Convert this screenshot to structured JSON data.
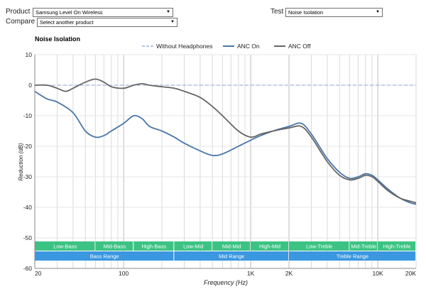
{
  "controls": {
    "product_label": "Product",
    "product_value": "Samsung Level On Wireless",
    "compare_label": "Compare",
    "compare_value": "Select another product",
    "test_label": "Test",
    "test_value": "Noise Isolation",
    "dropdown_icon": "triangle-down-icon"
  },
  "chart_data": {
    "type": "line",
    "title": "Noise Isolation",
    "xlabel": "Frequency (Hz)",
    "ylabel": "Reduction (dB)",
    "xscale": "log",
    "xlim": [
      20,
      20000
    ],
    "ylim": [
      -60,
      10
    ],
    "grid": true,
    "legend": "top-center",
    "x_ticks": [
      {
        "v": 20,
        "label": "20"
      },
      {
        "v": 100,
        "label": "100"
      },
      {
        "v": 1000,
        "label": "1K"
      },
      {
        "v": 2000,
        "label": "2K"
      },
      {
        "v": 10000,
        "label": "10K"
      },
      {
        "v": 20000,
        "label": "20K"
      }
    ],
    "y_ticks": [
      10,
      0,
      -10,
      -20,
      -30,
      -40,
      -50,
      -60
    ],
    "series": [
      {
        "name": "Without Headphones",
        "color": "#9fb3d9",
        "dashed": true,
        "points": [
          [
            20,
            0
          ],
          [
            20000,
            0
          ]
        ]
      },
      {
        "name": "ANC On",
        "color": "#4a77a8",
        "dashed": false,
        "points": [
          [
            20,
            -2
          ],
          [
            25,
            -4.5
          ],
          [
            30,
            -5.5
          ],
          [
            40,
            -9
          ],
          [
            50,
            -15
          ],
          [
            60,
            -17
          ],
          [
            70,
            -16.5
          ],
          [
            80,
            -15
          ],
          [
            100,
            -12.5
          ],
          [
            120,
            -10
          ],
          [
            140,
            -11
          ],
          [
            160,
            -13.5
          ],
          [
            200,
            -15
          ],
          [
            250,
            -17
          ],
          [
            300,
            -19
          ],
          [
            400,
            -21.5
          ],
          [
            500,
            -23
          ],
          [
            600,
            -22.5
          ],
          [
            800,
            -20
          ],
          [
            1000,
            -18
          ],
          [
            1200,
            -16.5
          ],
          [
            1500,
            -15
          ],
          [
            2000,
            -13.5
          ],
          [
            2500,
            -12.5
          ],
          [
            3000,
            -16
          ],
          [
            4000,
            -24
          ],
          [
            5000,
            -28.5
          ],
          [
            6000,
            -30.5
          ],
          [
            7000,
            -30
          ],
          [
            8000,
            -29
          ],
          [
            9000,
            -29.5
          ],
          [
            10000,
            -31
          ],
          [
            12000,
            -34
          ],
          [
            15000,
            -37
          ],
          [
            18000,
            -38.5
          ],
          [
            20000,
            -39
          ]
        ]
      },
      {
        "name": "ANC Off",
        "color": "#666666",
        "dashed": false,
        "points": [
          [
            20,
            0
          ],
          [
            25,
            0
          ],
          [
            30,
            -1
          ],
          [
            35,
            -2
          ],
          [
            40,
            -1
          ],
          [
            50,
            1
          ],
          [
            60,
            2
          ],
          [
            70,
            1
          ],
          [
            80,
            -0.5
          ],
          [
            100,
            -1
          ],
          [
            120,
            0
          ],
          [
            140,
            0.5
          ],
          [
            160,
            0
          ],
          [
            200,
            -0.5
          ],
          [
            250,
            -1
          ],
          [
            300,
            -2
          ],
          [
            400,
            -4
          ],
          [
            500,
            -7
          ],
          [
            600,
            -10
          ],
          [
            800,
            -15
          ],
          [
            1000,
            -17
          ],
          [
            1200,
            -16
          ],
          [
            1500,
            -15
          ],
          [
            2000,
            -14
          ],
          [
            2500,
            -13.5
          ],
          [
            3000,
            -17
          ],
          [
            4000,
            -25
          ],
          [
            5000,
            -29.5
          ],
          [
            6000,
            -31
          ],
          [
            7000,
            -30.5
          ],
          [
            8000,
            -29.5
          ],
          [
            9000,
            -30
          ],
          [
            10000,
            -31.5
          ],
          [
            12000,
            -34.5
          ],
          [
            15000,
            -37
          ],
          [
            18000,
            -38
          ],
          [
            20000,
            -38.5
          ]
        ]
      }
    ],
    "bands_top": [
      {
        "label": "Low-Bass",
        "from": 20,
        "to": 60
      },
      {
        "label": "Mid-Bass",
        "from": 60,
        "to": 120
      },
      {
        "label": "High-Bass",
        "from": 120,
        "to": 250
      },
      {
        "label": "Low-Mid",
        "from": 250,
        "to": 500
      },
      {
        "label": "Mid-Mid",
        "from": 500,
        "to": 1000
      },
      {
        "label": "High-Mid",
        "from": 1000,
        "to": 2000
      },
      {
        "label": "Low-Treble",
        "from": 2000,
        "to": 6000
      },
      {
        "label": "Mid-Treble",
        "from": 6000,
        "to": 10000
      },
      {
        "label": "High-Treble",
        "from": 10000,
        "to": 20000
      }
    ],
    "bands_bottom": [
      {
        "label": "Bass Range",
        "from": 20,
        "to": 250
      },
      {
        "label": "Mid Range",
        "from": 250,
        "to": 2000
      },
      {
        "label": "Treble Range",
        "from": 2000,
        "to": 20000
      }
    ],
    "band_colors": {
      "top": "#3cc383",
      "bottom": "#3a97e0"
    }
  }
}
